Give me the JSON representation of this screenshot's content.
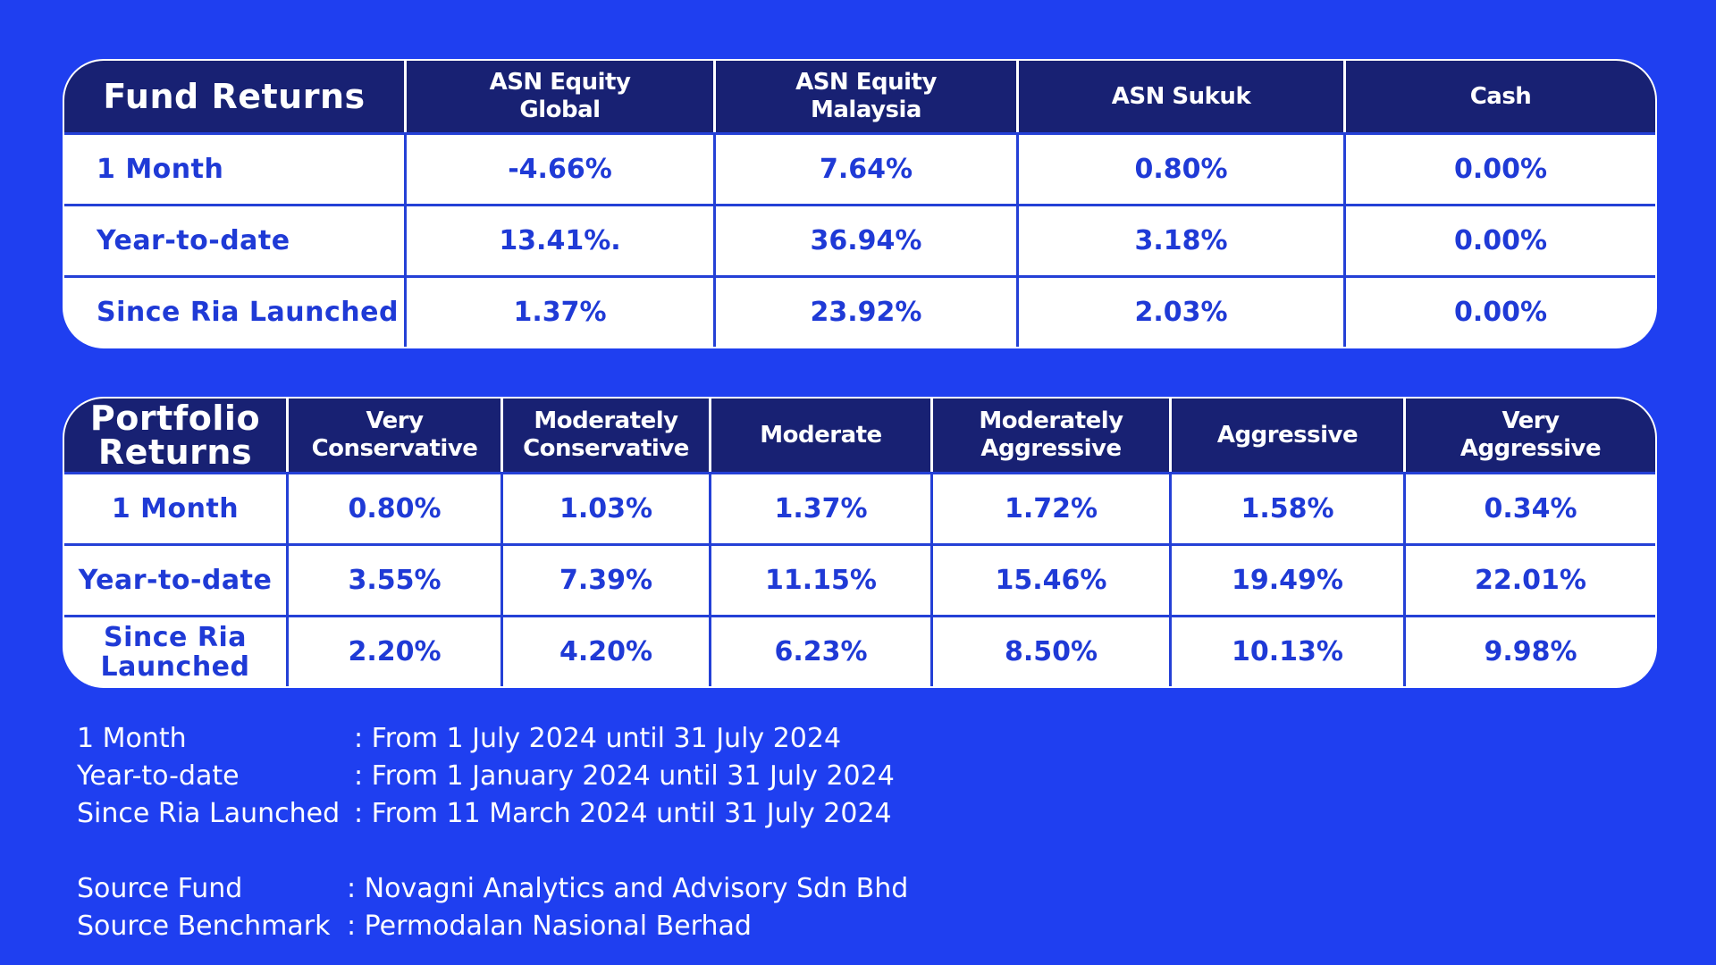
{
  "fund_returns": {
    "title": "Fund Returns",
    "columns": [
      "ASN Equity\nGlobal",
      "ASN Equity\nMalaysia",
      "ASN Sukuk",
      "Cash"
    ],
    "rows": [
      {
        "label": "1 Month",
        "values": [
          "-4.66%",
          "7.64%",
          "0.80%",
          "0.00%"
        ]
      },
      {
        "label": "Year-to-date",
        "values": [
          "13.41%.",
          "36.94%",
          "3.18%",
          "0.00%"
        ]
      },
      {
        "label": "Since Ria Launched",
        "values": [
          "1.37%",
          "23.92%",
          "2.03%",
          "0.00%"
        ]
      }
    ]
  },
  "portfolio_returns": {
    "title": "Portfolio\nReturns",
    "columns": [
      "Very\nConservative",
      "Moderately\nConservative",
      "Moderate",
      "Moderately\nAggressive",
      "Aggressive",
      "Very\nAggressive"
    ],
    "rows": [
      {
        "label": "1 Month",
        "values": [
          "0.80%",
          "1.03%",
          "1.37%",
          "1.72%",
          "1.58%",
          "0.34%"
        ]
      },
      {
        "label": "Year-to-date",
        "values": [
          "3.55%",
          "7.39%",
          "11.15%",
          "15.46%",
          "19.49%",
          "22.01%"
        ]
      },
      {
        "label": "Since Ria\nLaunched",
        "values": [
          "2.20%",
          "4.20%",
          "6.23%",
          "8.50%",
          "10.13%",
          "9.98%"
        ]
      }
    ]
  },
  "period_notes": [
    {
      "term": "1 Month",
      "desc": ": From 1 July 2024 until 31 July 2024"
    },
    {
      "term": "Year-to-date",
      "desc": ": From 1 January 2024 until 31 July 2024"
    },
    {
      "term": "Since Ria Launched",
      "desc": ": From 11 March 2024 until 31 July 2024"
    }
  ],
  "source_notes": [
    {
      "term": "Source Fund",
      "desc": ": Novagni Analytics and Advisory Sdn Bhd"
    },
    {
      "term": "Source Benchmark",
      "desc": ": Permodalan Nasional Berhad"
    }
  ],
  "colors": {
    "background": "#1f3ff0",
    "header": "#182173",
    "cell_text": "#1f3ad6",
    "cell_background": "#ffffff"
  }
}
